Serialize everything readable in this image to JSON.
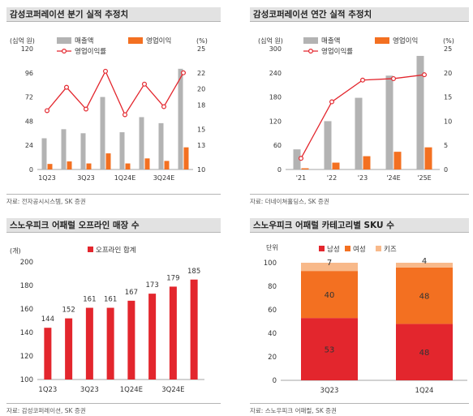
{
  "panels": [
    {
      "title": "감성코퍼레이션 분기 실적 추정치",
      "source": "자료: 전자공시시스템, SK 증권",
      "chart_data": {
        "type": "bar",
        "unit_left": "(십억 원)",
        "unit_right": "(%)",
        "legend": [
          "매출액",
          "영업이익",
          "영업이익률"
        ],
        "x_tick_labels": [
          "1Q23",
          "3Q23",
          "1Q24E",
          "3Q24E"
        ],
        "y_left_range": [
          0,
          120
        ],
        "y_left_ticks": [
          0,
          24,
          48,
          72,
          96,
          120
        ],
        "y_right_range": [
          10,
          25
        ],
        "y_right_ticks": [
          10,
          13,
          15,
          18,
          20,
          22,
          25
        ],
        "series": [
          {
            "name": "매출액",
            "type": "bar",
            "axis": "left",
            "color": "#b3b3b3",
            "values": [
              31,
              40,
              36,
              72,
              37,
              52,
              46,
              100
            ]
          },
          {
            "name": "영업이익",
            "type": "bar",
            "axis": "left",
            "color": "#f37021",
            "values": [
              5.5,
              8,
              6,
              16,
              6,
              11,
              8.5,
              22
            ]
          },
          {
            "name": "영업이익률",
            "type": "line",
            "axis": "right",
            "color": "#e3262d",
            "values": [
              17.3,
              20.2,
              17.5,
              22.2,
              16.8,
              20.6,
              17.8,
              22.0
            ]
          }
        ]
      }
    },
    {
      "title": "감성코퍼레이션 연간 실적 추정치",
      "source": "자료: 더네이쳐홀딩스, SK 증권",
      "chart_data": {
        "type": "bar",
        "unit_left": "(십억 원)",
        "unit_right": "(%)",
        "legend": [
          "매출액",
          "영업이익",
          "영업이익률"
        ],
        "x_tick_labels": [
          "'21",
          "'22",
          "'23",
          "'24E",
          "'25E"
        ],
        "y_left_range": [
          0,
          300
        ],
        "y_left_ticks": [
          0,
          60,
          120,
          180,
          240,
          300
        ],
        "y_right_range": [
          0,
          25
        ],
        "y_right_ticks": [
          0,
          5,
          10,
          15,
          20,
          25
        ],
        "series": [
          {
            "name": "매출액",
            "type": "bar",
            "axis": "left",
            "color": "#b3b3b3",
            "values": [
              50,
              120,
              178,
              233,
              282
            ]
          },
          {
            "name": "영업이익",
            "type": "bar",
            "axis": "left",
            "color": "#f37021",
            "values": [
              3,
              17,
              33,
              44,
              55
            ]
          },
          {
            "name": "영업이익률",
            "type": "line",
            "axis": "right",
            "color": "#e3262d",
            "values": [
              2.3,
              14.0,
              18.5,
              18.8,
              19.6
            ]
          }
        ]
      }
    },
    {
      "title": "스노우피크 어패럴 오프라인 매장 수",
      "source": "자료: 감성코퍼레이션, SK 증권",
      "chart_data": {
        "type": "bar",
        "unit_left": "(개)",
        "legend": [
          "오프라인 합계"
        ],
        "x_tick_labels": [
          "1Q23",
          "3Q23",
          "1Q24E",
          "3Q24E"
        ],
        "y_left_range": [
          100,
          200
        ],
        "y_left_ticks": [
          100,
          120,
          140,
          160,
          180,
          200
        ],
        "series": [
          {
            "name": "오프라인 합계",
            "type": "bar",
            "axis": "left",
            "color": "#e3262d",
            "values": [
              144,
              152,
              161,
              161,
              167,
              173,
              179,
              185
            ],
            "data_labels": [
              "144",
              "152",
              "161",
              "161",
              "167",
              "173",
              "179",
              "185"
            ]
          }
        ]
      }
    },
    {
      "title": "스노우피크 어패럴 카테고리별 SKU 수",
      "source": "자료: 스노우피크 어패럴, SK 증권",
      "chart_data": {
        "type": "bar",
        "stacked": true,
        "unit_left": "단위",
        "legend": [
          "남성",
          "여성",
          "키즈"
        ],
        "categories": [
          "3Q23",
          "1Q24"
        ],
        "y_left_range": [
          0,
          100
        ],
        "y_left_ticks": [
          0,
          20,
          40,
          60,
          80,
          100
        ],
        "series": [
          {
            "name": "남성",
            "color": "#e3262d",
            "values": [
              53,
              48
            ],
            "data_labels": [
              "53",
              "48"
            ]
          },
          {
            "name": "여성",
            "color": "#f37021",
            "values": [
              40,
              48
            ],
            "data_labels": [
              "40",
              "48"
            ]
          },
          {
            "name": "키즈",
            "color": "#f8b98a",
            "values": [
              7,
              4
            ],
            "data_labels": [
              "7",
              "4"
            ]
          }
        ]
      }
    }
  ]
}
